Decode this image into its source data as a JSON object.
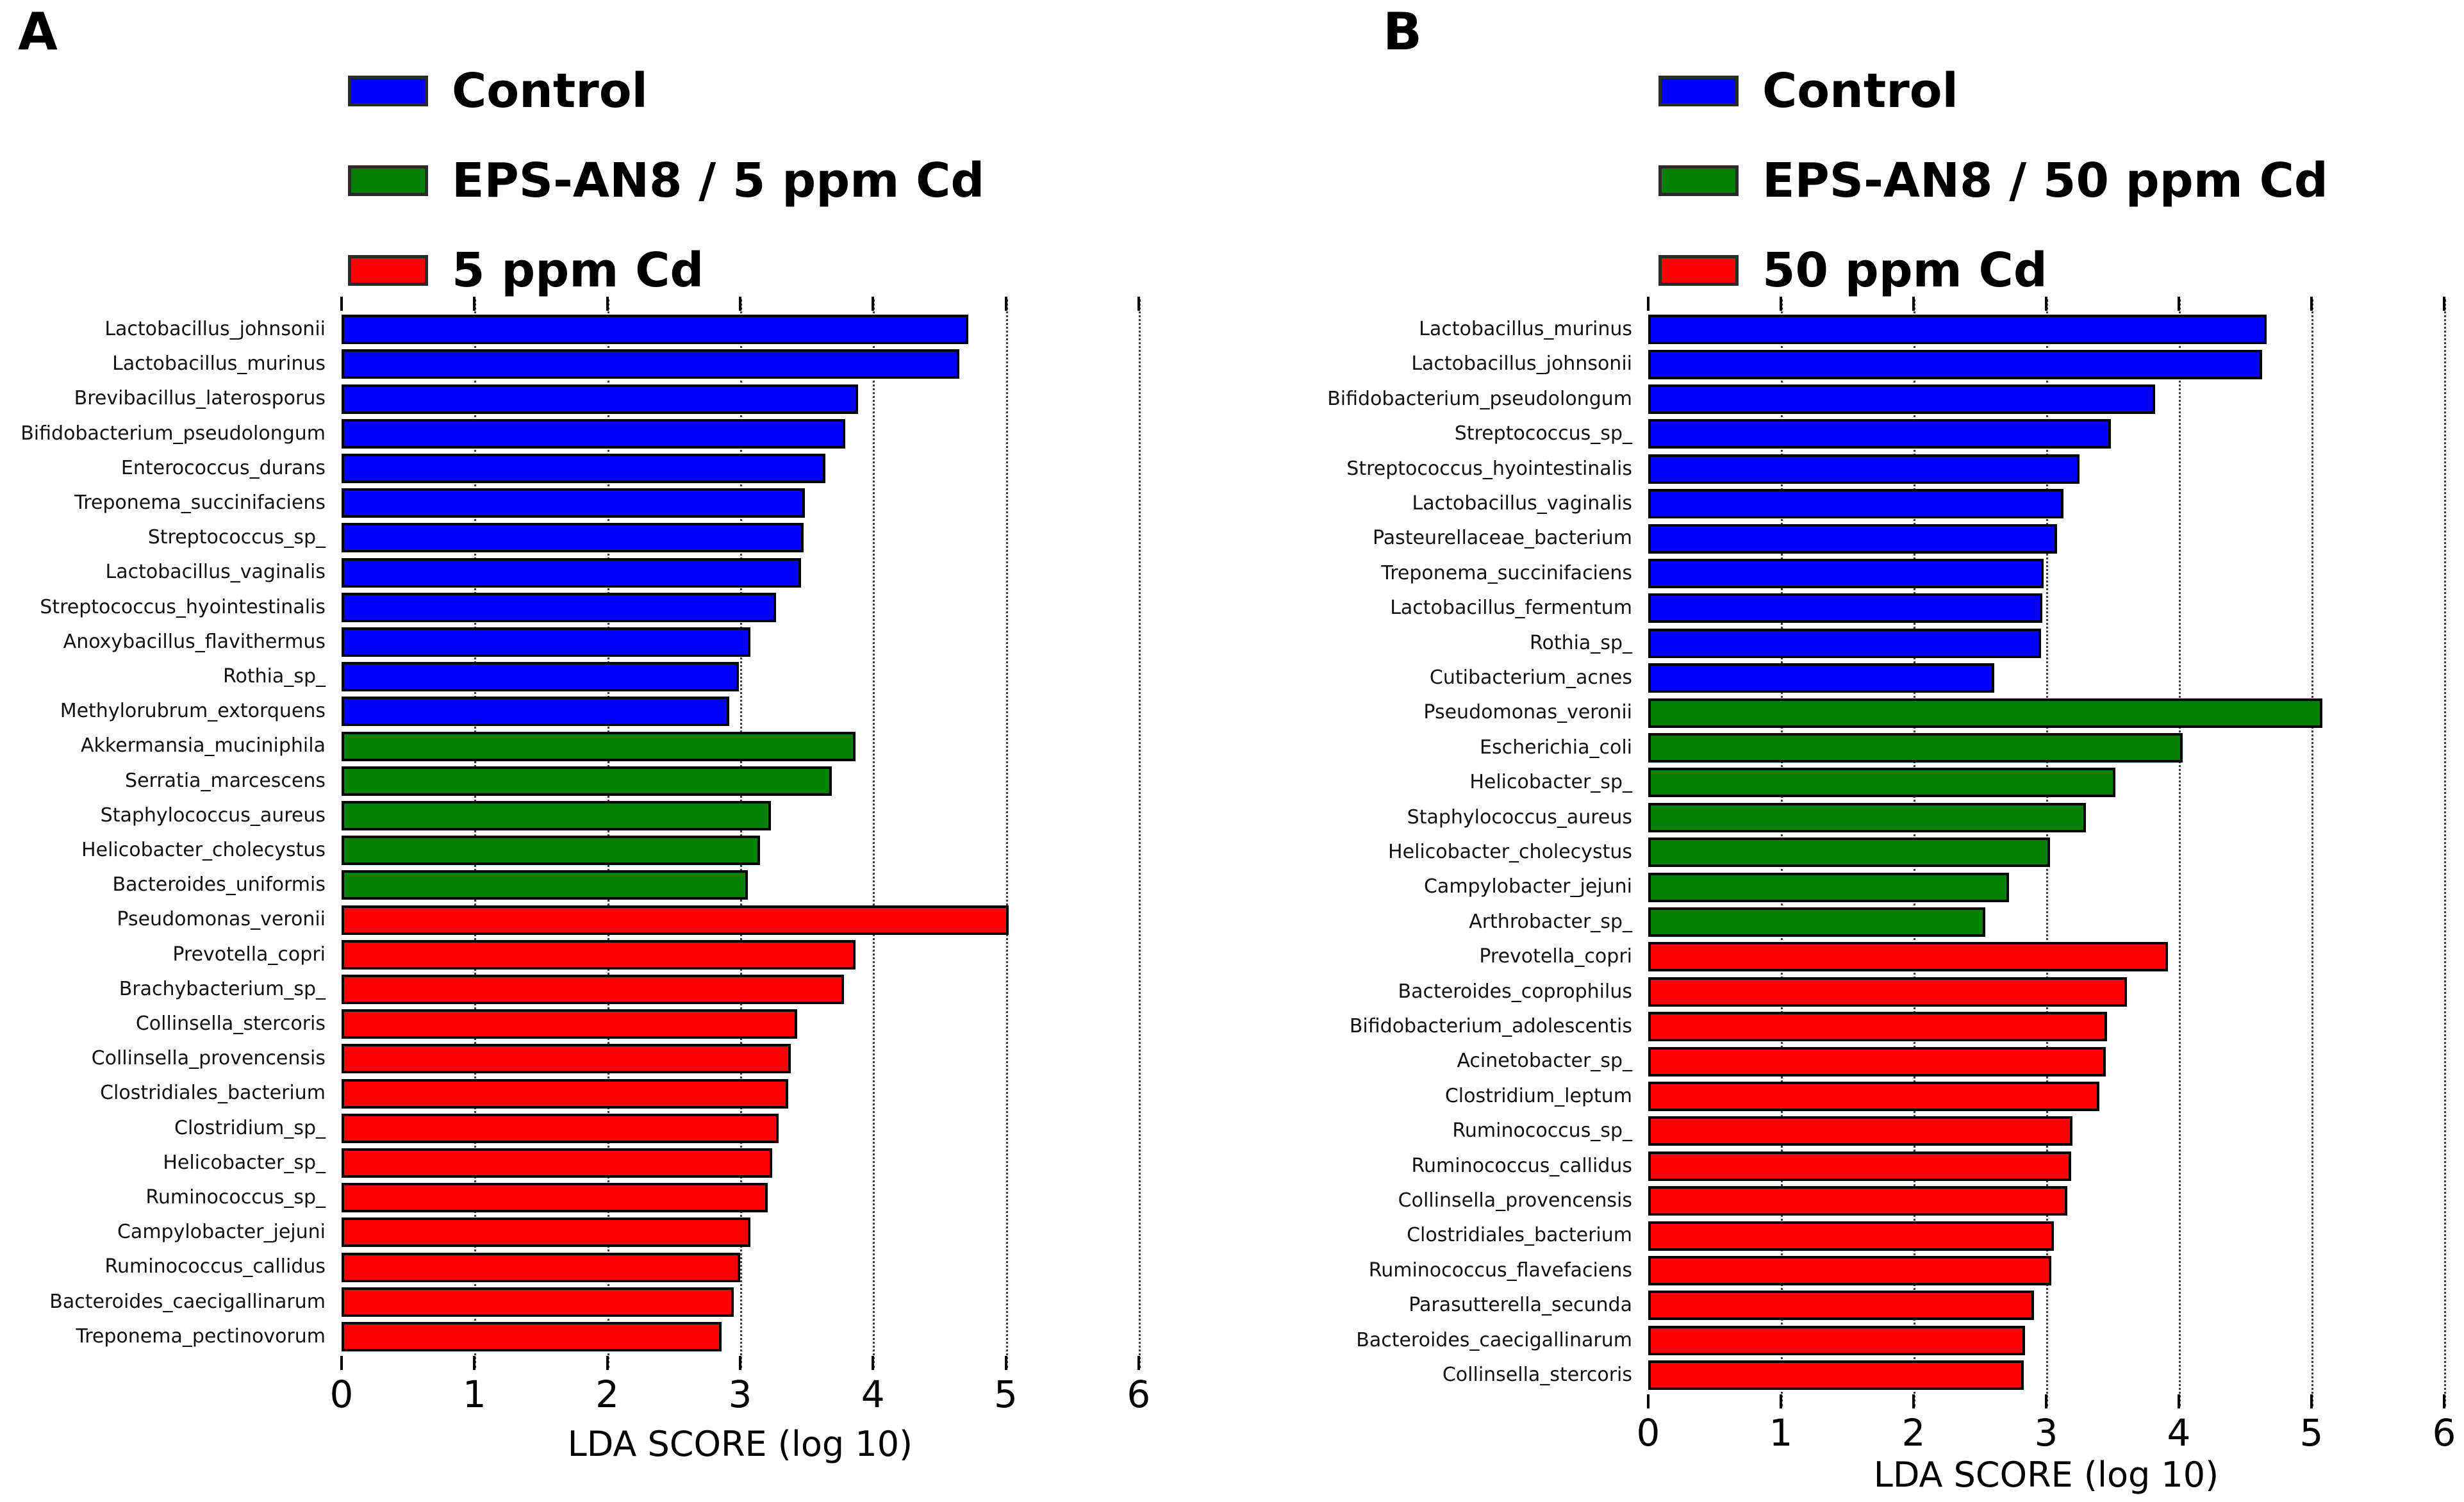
{
  "figure": {
    "background": "#ffffff",
    "xlabel": "LDA SCORE (log 10)",
    "x_ticks": [
      "0",
      "1",
      "2",
      "3",
      "4",
      "5",
      "6"
    ],
    "xlim": [
      0,
      6
    ],
    "grid": "dotted-vertical",
    "legend_position": "top"
  },
  "chart_data": [
    {
      "type": "bar",
      "orientation": "horizontal",
      "panel_label": "A",
      "title": "",
      "xlabel": "LDA SCORE (log 10)",
      "xlim": [
        0,
        6
      ],
      "x_ticks": [
        "0",
        "1",
        "2",
        "3",
        "4",
        "5",
        "6"
      ],
      "legend": [
        {
          "label": "Control",
          "color": "#0000ff"
        },
        {
          "label": "EPS-AN8 / 5 ppm Cd",
          "color": "#008000"
        },
        {
          "label": "5 ppm Cd",
          "color": "#ff0000"
        }
      ],
      "bars": [
        {
          "label": "Lactobacillus_johnsonii",
          "value": 4.72,
          "series": 0
        },
        {
          "label": "Lactobacillus_murinus",
          "value": 4.65,
          "series": 0
        },
        {
          "label": "Brevibacillus_laterosporus",
          "value": 3.89,
          "series": 0
        },
        {
          "label": "Bifidobacterium_pseudolongum",
          "value": 3.79,
          "series": 0
        },
        {
          "label": "Enterococcus_durans",
          "value": 3.64,
          "series": 0
        },
        {
          "label": "Treponema_succinifaciens",
          "value": 3.49,
          "series": 0
        },
        {
          "label": "Streptococcus_sp_",
          "value": 3.48,
          "series": 0
        },
        {
          "label": "Lactobacillus_vaginalis",
          "value": 3.46,
          "series": 0
        },
        {
          "label": "Streptococcus_hyointestinalis",
          "value": 3.27,
          "series": 0
        },
        {
          "label": "Anoxybacillus_flavithermus",
          "value": 3.08,
          "series": 0
        },
        {
          "label": "Rothia_sp_",
          "value": 2.99,
          "series": 0
        },
        {
          "label": "Methylorubrum_extorquens",
          "value": 2.92,
          "series": 0
        },
        {
          "label": "Akkermansia_muciniphila",
          "value": 3.87,
          "series": 1
        },
        {
          "label": "Serratia_marcescens",
          "value": 3.69,
          "series": 1
        },
        {
          "label": "Staphylococcus_aureus",
          "value": 3.23,
          "series": 1
        },
        {
          "label": "Helicobacter_cholecystus",
          "value": 3.15,
          "series": 1
        },
        {
          "label": "Bacteroides_uniformis",
          "value": 3.06,
          "series": 1
        },
        {
          "label": "Pseudomonas_veronii",
          "value": 5.02,
          "series": 2
        },
        {
          "label": "Prevotella_copri",
          "value": 3.87,
          "series": 2
        },
        {
          "label": "Brachybacterium_sp_",
          "value": 3.78,
          "series": 2
        },
        {
          "label": "Collinsella_stercoris",
          "value": 3.43,
          "series": 2
        },
        {
          "label": "Collinsella_provencensis",
          "value": 3.38,
          "series": 2
        },
        {
          "label": "Clostridiales_bacterium",
          "value": 3.36,
          "series": 2
        },
        {
          "label": "Clostridium_sp_",
          "value": 3.29,
          "series": 2
        },
        {
          "label": "Helicobacter_sp_",
          "value": 3.24,
          "series": 2
        },
        {
          "label": "Ruminococcus_sp_",
          "value": 3.21,
          "series": 2
        },
        {
          "label": "Campylobacter_jejuni",
          "value": 3.08,
          "series": 2
        },
        {
          "label": "Ruminococcus_callidus",
          "value": 3.0,
          "series": 2
        },
        {
          "label": "Bacteroides_caecigallinarum",
          "value": 2.95,
          "series": 2
        },
        {
          "label": "Treponema_pectinovorum",
          "value": 2.86,
          "series": 2
        }
      ]
    },
    {
      "type": "bar",
      "orientation": "horizontal",
      "panel_label": "B",
      "title": "",
      "xlabel": "LDA SCORE (log 10)",
      "xlim": [
        0,
        6
      ],
      "x_ticks": [
        "0",
        "1",
        "2",
        "3",
        "4",
        "5",
        "6"
      ],
      "legend": [
        {
          "label": "Control",
          "color": "#0000ff"
        },
        {
          "label": "EPS-AN8 / 50 ppm Cd",
          "color": "#008000"
        },
        {
          "label": "50 ppm Cd",
          "color": "#ff0000"
        }
      ],
      "bars": [
        {
          "label": "Lactobacillus_murinus",
          "value": 4.66,
          "series": 0
        },
        {
          "label": "Lactobacillus_johnsonii",
          "value": 4.63,
          "series": 0
        },
        {
          "label": "Bifidobacterium_pseudolongum",
          "value": 3.82,
          "series": 0
        },
        {
          "label": "Streptococcus_sp_",
          "value": 3.49,
          "series": 0
        },
        {
          "label": "Streptococcus_hyointestinalis",
          "value": 3.25,
          "series": 0
        },
        {
          "label": "Lactobacillus_vaginalis",
          "value": 3.13,
          "series": 0
        },
        {
          "label": "Pasteurellaceae_bacterium",
          "value": 3.08,
          "series": 0
        },
        {
          "label": "Treponema_succinifaciens",
          "value": 2.98,
          "series": 0
        },
        {
          "label": "Lactobacillus_fermentum",
          "value": 2.97,
          "series": 0
        },
        {
          "label": "Rothia_sp_",
          "value": 2.96,
          "series": 0
        },
        {
          "label": "Cutibacterium_acnes",
          "value": 2.61,
          "series": 0
        },
        {
          "label": "Pseudomonas_veronii",
          "value": 5.08,
          "series": 1
        },
        {
          "label": "Escherichia_coli",
          "value": 4.03,
          "series": 1
        },
        {
          "label": "Helicobacter_sp_",
          "value": 3.52,
          "series": 1
        },
        {
          "label": "Staphylococcus_aureus",
          "value": 3.3,
          "series": 1
        },
        {
          "label": "Helicobacter_cholecystus",
          "value": 3.03,
          "series": 1
        },
        {
          "label": "Campylobacter_jejuni",
          "value": 2.72,
          "series": 1
        },
        {
          "label": "Arthrobacter_sp_",
          "value": 2.54,
          "series": 1
        },
        {
          "label": "Prevotella_copri",
          "value": 3.92,
          "series": 2
        },
        {
          "label": "Bacteroides_coprophilus",
          "value": 3.61,
          "series": 2
        },
        {
          "label": "Bifidobacterium_adolescentis",
          "value": 3.46,
          "series": 2
        },
        {
          "label": "Acinetobacter_sp_",
          "value": 3.45,
          "series": 2
        },
        {
          "label": "Clostridium_leptum",
          "value": 3.4,
          "series": 2
        },
        {
          "label": "Ruminococcus_sp_",
          "value": 3.2,
          "series": 2
        },
        {
          "label": "Ruminococcus_callidus",
          "value": 3.19,
          "series": 2
        },
        {
          "label": "Collinsella_provencensis",
          "value": 3.16,
          "series": 2
        },
        {
          "label": "Clostridiales_bacterium",
          "value": 3.06,
          "series": 2
        },
        {
          "label": "Ruminococcus_flavefaciens",
          "value": 3.04,
          "series": 2
        },
        {
          "label": "Parasutterella_secunda",
          "value": 2.91,
          "series": 2
        },
        {
          "label": "Bacteroides_caecigallinarum",
          "value": 2.84,
          "series": 2
        },
        {
          "label": "Collinsella_stercoris",
          "value": 2.83,
          "series": 2
        }
      ]
    }
  ]
}
